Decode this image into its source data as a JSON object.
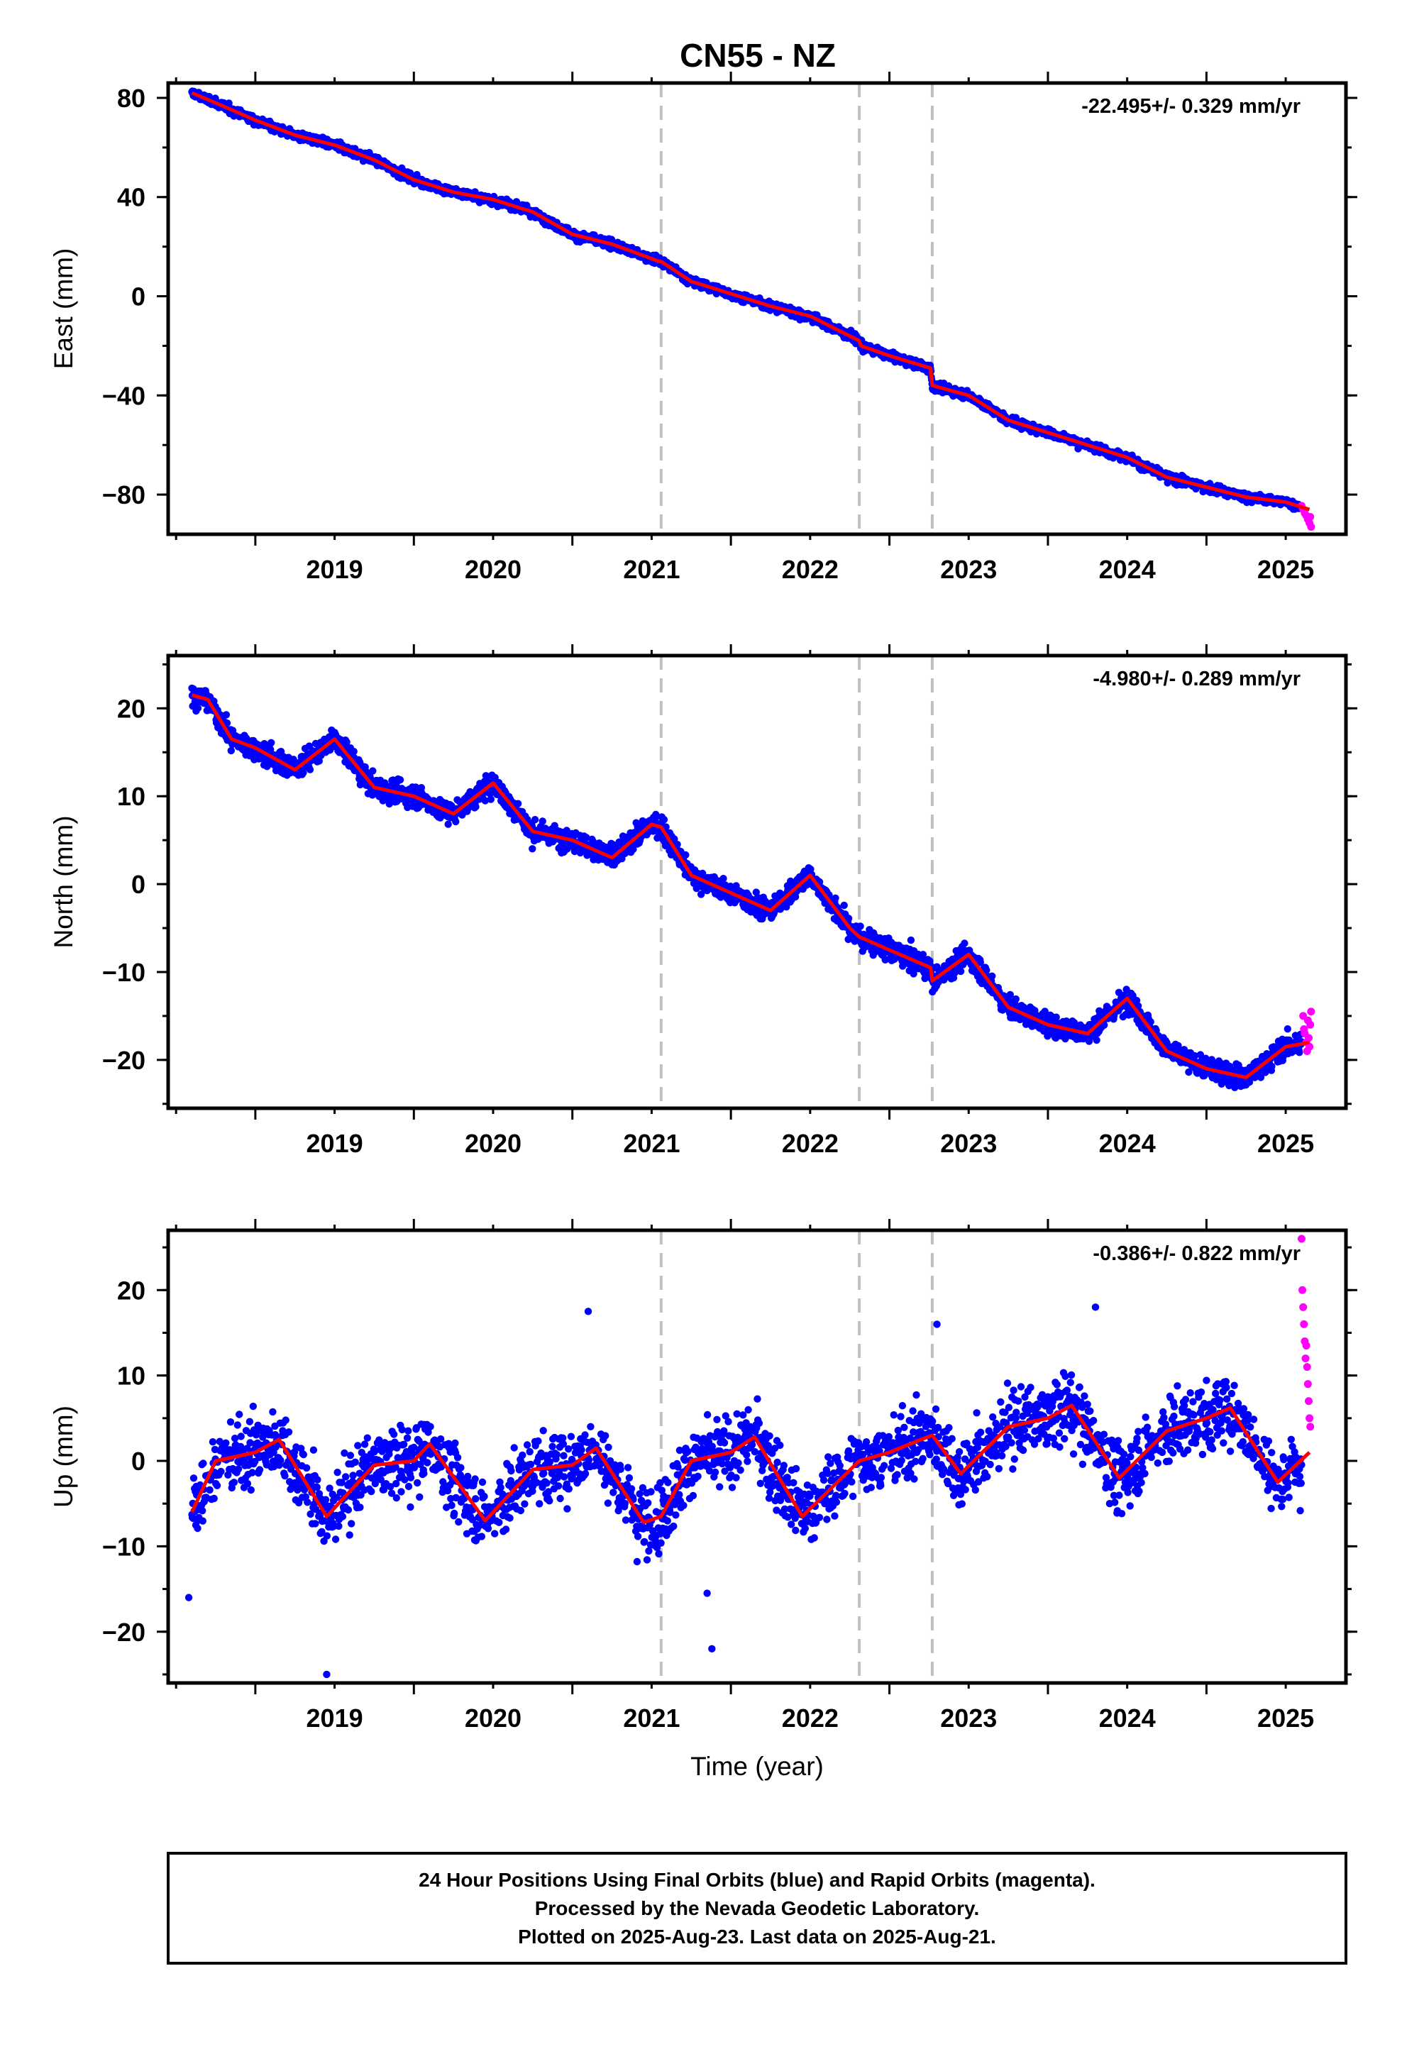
{
  "title": "CN55 - NZ",
  "colors": {
    "final": "#0000ff",
    "rapid": "#ff00ff",
    "model": "#ff0000",
    "steps": "#c0c0c0",
    "frame": "#000000"
  },
  "chart_data": [
    {
      "type": "scatter",
      "ylabel": "East (mm)",
      "xlabel": "",
      "rate": "-22.495+/- 0.329 mm/yr",
      "xlim": [
        2018.45,
        2025.88
      ],
      "ylim": [
        -96,
        86
      ],
      "yticks": [
        80,
        40,
        0,
        -40,
        -80
      ],
      "ytick_labels": [
        "80",
        "40",
        "0",
        "−40",
        "−80"
      ],
      "x_tick_labels": [
        "2019",
        "2020",
        "2021",
        "2022",
        "2023",
        "2024",
        "2025"
      ],
      "steps": [
        2021.56,
        2022.81,
        2023.27
      ],
      "noise": 1.3,
      "amp": 0.8,
      "model": [
        [
          2018.6,
          82
        ],
        [
          2018.75,
          78
        ],
        [
          2019.0,
          71
        ],
        [
          2019.25,
          65
        ],
        [
          2019.5,
          61
        ],
        [
          2019.75,
          55
        ],
        [
          2020.0,
          47
        ],
        [
          2020.25,
          42
        ],
        [
          2020.5,
          39
        ],
        [
          2020.75,
          34
        ],
        [
          2021.0,
          25
        ],
        [
          2021.25,
          21
        ],
        [
          2021.55,
          14
        ],
        [
          2021.56,
          14
        ],
        [
          2021.75,
          6
        ],
        [
          2022.0,
          1
        ],
        [
          2022.25,
          -4
        ],
        [
          2022.5,
          -8
        ],
        [
          2022.81,
          -18
        ],
        [
          2022.82,
          -20
        ],
        [
          2023.0,
          -24
        ],
        [
          2023.26,
          -29
        ],
        [
          2023.27,
          -36
        ],
        [
          2023.5,
          -40
        ],
        [
          2023.75,
          -50
        ],
        [
          2024.0,
          -55
        ],
        [
          2024.25,
          -60
        ],
        [
          2024.5,
          -65
        ],
        [
          2024.75,
          -73
        ],
        [
          2025.0,
          -77
        ],
        [
          2025.25,
          -81
        ],
        [
          2025.5,
          -83
        ],
        [
          2025.65,
          -86
        ]
      ],
      "rapid": [
        [
          2025.6,
          -84.5
        ],
        [
          2025.61,
          -86
        ],
        [
          2025.62,
          -87.5
        ],
        [
          2025.63,
          -88.5
        ],
        [
          2025.64,
          -90
        ],
        [
          2025.65,
          -91.5
        ],
        [
          2025.655,
          -89
        ],
        [
          2025.66,
          -93
        ]
      ]
    },
    {
      "type": "scatter",
      "ylabel": "North (mm)",
      "xlabel": "",
      "rate": "-4.980+/- 0.289 mm/yr",
      "xlim": [
        2018.45,
        2025.88
      ],
      "ylim": [
        -25.5,
        26
      ],
      "yticks": [
        20,
        10,
        0,
        -10,
        -20
      ],
      "ytick_labels": [
        "20",
        "10",
        "0",
        "−10",
        "−20"
      ],
      "x_tick_labels": [
        "2019",
        "2020",
        "2021",
        "2022",
        "2023",
        "2024",
        "2025"
      ],
      "steps": [
        2021.56,
        2022.81,
        2023.27
      ],
      "noise": 1.0,
      "amp": 0.5,
      "model": [
        [
          2018.6,
          21.5
        ],
        [
          2018.7,
          21
        ],
        [
          2018.85,
          16.5
        ],
        [
          2019.0,
          15.5
        ],
        [
          2019.25,
          13
        ],
        [
          2019.5,
          16.5
        ],
        [
          2019.75,
          11
        ],
        [
          2020.0,
          10
        ],
        [
          2020.25,
          8
        ],
        [
          2020.5,
          11.5
        ],
        [
          2020.75,
          6
        ],
        [
          2021.0,
          5
        ],
        [
          2021.25,
          3
        ],
        [
          2021.5,
          6.8
        ],
        [
          2021.56,
          6.5
        ],
        [
          2021.75,
          1
        ],
        [
          2022.0,
          -1
        ],
        [
          2022.25,
          -3
        ],
        [
          2022.5,
          1
        ],
        [
          2022.75,
          -5
        ],
        [
          2022.81,
          -6
        ],
        [
          2023.0,
          -7.5
        ],
        [
          2023.26,
          -9.5
        ],
        [
          2023.27,
          -11
        ],
        [
          2023.5,
          -8
        ],
        [
          2023.75,
          -14
        ],
        [
          2024.0,
          -16
        ],
        [
          2024.25,
          -17
        ],
        [
          2024.5,
          -13
        ],
        [
          2024.75,
          -19
        ],
        [
          2025.0,
          -21
        ],
        [
          2025.25,
          -22
        ],
        [
          2025.5,
          -18.5
        ],
        [
          2025.65,
          -18
        ]
      ],
      "rapid": [
        [
          2025.61,
          -15
        ],
        [
          2025.615,
          -16.5
        ],
        [
          2025.62,
          -17
        ],
        [
          2025.63,
          -18
        ],
        [
          2025.635,
          -19
        ],
        [
          2025.64,
          -15.5
        ],
        [
          2025.645,
          -17.5
        ],
        [
          2025.65,
          -18.5
        ],
        [
          2025.655,
          -16
        ],
        [
          2025.66,
          -14.5
        ]
      ]
    },
    {
      "type": "scatter",
      "ylabel": "Up (mm)",
      "xlabel": "Time (year)",
      "rate": "-0.386+/- 0.822 mm/yr",
      "xlim": [
        2018.45,
        2025.88
      ],
      "ylim": [
        -26,
        27
      ],
      "yticks": [
        20,
        10,
        0,
        -10,
        -20
      ],
      "ytick_labels": [
        "20",
        "10",
        "0",
        "−10",
        "−20"
      ],
      "x_tick_labels": [
        "2019",
        "2020",
        "2021",
        "2022",
        "2023",
        "2024",
        "2025"
      ],
      "steps": [
        2021.56,
        2022.81,
        2023.27
      ],
      "noise": 3.6,
      "amp": 0.5,
      "model": [
        [
          2018.6,
          -6
        ],
        [
          2018.75,
          0
        ],
        [
          2019.0,
          1
        ],
        [
          2019.15,
          2.5
        ],
        [
          2019.45,
          -6.5
        ],
        [
          2019.75,
          -0.5
        ],
        [
          2020.0,
          0
        ],
        [
          2020.1,
          2
        ],
        [
          2020.45,
          -7
        ],
        [
          2020.75,
          -1
        ],
        [
          2021.0,
          -0.5
        ],
        [
          2021.15,
          1.5
        ],
        [
          2021.45,
          -7.2
        ],
        [
          2021.56,
          -6.5
        ],
        [
          2021.75,
          0
        ],
        [
          2022.0,
          1
        ],
        [
          2022.15,
          2.8
        ],
        [
          2022.45,
          -6.5
        ],
        [
          2022.81,
          0
        ],
        [
          2023.0,
          1
        ],
        [
          2023.2,
          2.5
        ],
        [
          2023.27,
          3
        ],
        [
          2023.45,
          -1.5
        ],
        [
          2023.75,
          4
        ],
        [
          2024.0,
          5
        ],
        [
          2024.15,
          6.5
        ],
        [
          2024.45,
          -2
        ],
        [
          2024.75,
          3.5
        ],
        [
          2025.0,
          5
        ],
        [
          2025.15,
          6.2
        ],
        [
          2025.45,
          -2.5
        ],
        [
          2025.65,
          1
        ]
      ],
      "rapid": [
        [
          2025.6,
          26
        ],
        [
          2025.605,
          20
        ],
        [
          2025.61,
          18
        ],
        [
          2025.615,
          16
        ],
        [
          2025.62,
          14
        ],
        [
          2025.625,
          12
        ],
        [
          2025.63,
          13.5
        ],
        [
          2025.635,
          11
        ],
        [
          2025.64,
          9
        ],
        [
          2025.645,
          7
        ],
        [
          2025.65,
          5
        ],
        [
          2025.655,
          4
        ]
      ],
      "outliers": [
        [
          2021.85,
          -15.5
        ],
        [
          2021.88,
          -22
        ],
        [
          2019.45,
          -25
        ],
        [
          2018.58,
          -16
        ],
        [
          2024.3,
          18
        ],
        [
          2021.1,
          17.5
        ],
        [
          2023.3,
          16
        ]
      ]
    }
  ],
  "footer": {
    "line1": "24 Hour Positions Using Final Orbits (blue) and Rapid Orbits (magenta).",
    "line2": "Processed by the Nevada Geodetic Laboratory.",
    "line3": "Plotted on 2025-Aug-23. Last data on 2025-Aug-21."
  }
}
